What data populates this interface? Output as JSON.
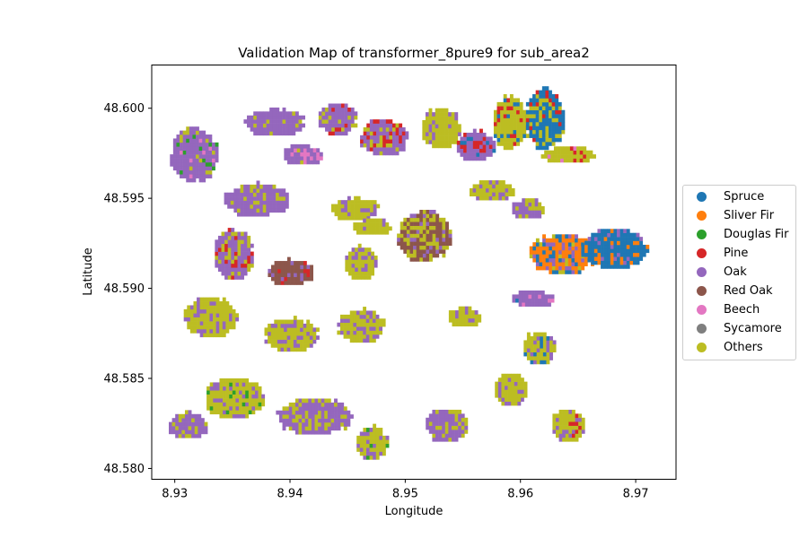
{
  "chart_data": {
    "type": "scatter",
    "title": "Validation Map of transformer_8pure9 for sub_area2",
    "xlabel": "Longitude",
    "ylabel": "Latitude",
    "xlim": [
      8.928,
      8.9735
    ],
    "ylim": [
      48.5794,
      48.6024
    ],
    "xticks": [
      "8.93",
      "8.94",
      "8.95",
      "8.96",
      "8.97"
    ],
    "xtick_values": [
      8.93,
      8.94,
      8.95,
      8.96,
      8.97
    ],
    "yticks": [
      "48.580",
      "48.585",
      "48.590",
      "48.595",
      "48.600"
    ],
    "ytick_values": [
      48.58,
      48.585,
      48.59,
      48.595,
      48.6
    ],
    "grid": false,
    "legend_position": "center-right-outside",
    "classes": [
      {
        "name": "Spruce",
        "color": "#1f77b4"
      },
      {
        "name": "Sliver Fir",
        "color": "#ff7f0e"
      },
      {
        "name": "Douglas Fir",
        "color": "#2ca02c"
      },
      {
        "name": "Pine",
        "color": "#d62728"
      },
      {
        "name": "Oak",
        "color": "#9467bd"
      },
      {
        "name": "Red Oak",
        "color": "#8c564b"
      },
      {
        "name": "Beech",
        "color": "#e377c2"
      },
      {
        "name": "Sycamore",
        "color": "#7f7f7f"
      },
      {
        "name": "Others",
        "color": "#bcbd22"
      }
    ],
    "patches": [
      {
        "lon": 8.9315,
        "lat": 48.5975,
        "rlon": 0.0022,
        "rlat": 0.0016,
        "main": "Oak",
        "mix": {
          "Douglas Fir": 0.08,
          "Others": 0.1,
          "Beech": 0.06
        }
      },
      {
        "lon": 8.9385,
        "lat": 48.5993,
        "rlon": 0.0028,
        "rlat": 0.0008,
        "main": "Oak",
        "mix": {
          "Others": 0.15
        }
      },
      {
        "lon": 8.941,
        "lat": 48.5975,
        "rlon": 0.0018,
        "rlat": 0.0006,
        "main": "Oak",
        "mix": {
          "Beech": 0.25,
          "Others": 0.15
        }
      },
      {
        "lon": 8.944,
        "lat": 48.5995,
        "rlon": 0.0018,
        "rlat": 0.001,
        "main": "Oak",
        "mix": {
          "Pine": 0.12,
          "Others": 0.12
        }
      },
      {
        "lon": 8.948,
        "lat": 48.5985,
        "rlon": 0.0022,
        "rlat": 0.0011,
        "main": "Oak",
        "mix": {
          "Pine": 0.15,
          "Others": 0.18
        }
      },
      {
        "lon": 8.953,
        "lat": 48.599,
        "rlon": 0.0018,
        "rlat": 0.0012,
        "main": "Others",
        "mix": {
          "Oak": 0.2
        }
      },
      {
        "lon": 8.956,
        "lat": 48.598,
        "rlon": 0.0018,
        "rlat": 0.0009,
        "main": "Oak",
        "mix": {
          "Pine": 0.2,
          "Spruce": 0.1
        }
      },
      {
        "lon": 8.959,
        "lat": 48.5993,
        "rlon": 0.0016,
        "rlat": 0.0016,
        "main": "Others",
        "mix": {
          "Pine": 0.15,
          "Spruce": 0.12
        }
      },
      {
        "lon": 8.962,
        "lat": 48.5995,
        "rlon": 0.0018,
        "rlat": 0.0018,
        "main": "Spruce",
        "mix": {
          "Others": 0.25,
          "Pine": 0.1
        }
      },
      {
        "lon": 8.964,
        "lat": 48.5975,
        "rlon": 0.0025,
        "rlat": 0.0005,
        "main": "Others",
        "mix": {
          "Pine": 0.15,
          "Beech": 0.1
        }
      },
      {
        "lon": 8.937,
        "lat": 48.595,
        "rlon": 0.003,
        "rlat": 0.001,
        "main": "Oak",
        "mix": {
          "Others": 0.25
        }
      },
      {
        "lon": 8.9455,
        "lat": 48.5945,
        "rlon": 0.0022,
        "rlat": 0.0007,
        "main": "Others",
        "mix": {
          "Oak": 0.25
        }
      },
      {
        "lon": 8.9515,
        "lat": 48.593,
        "rlon": 0.0025,
        "rlat": 0.0015,
        "main": "Red Oak",
        "mix": {
          "Others": 0.35,
          "Oak": 0.15
        }
      },
      {
        "lon": 8.9575,
        "lat": 48.5955,
        "rlon": 0.0022,
        "rlat": 0.0006,
        "main": "Others",
        "mix": {
          "Oak": 0.25
        }
      },
      {
        "lon": 8.9605,
        "lat": 48.5945,
        "rlon": 0.0015,
        "rlat": 0.0006,
        "main": "Oak",
        "mix": {
          "Others": 0.3
        }
      },
      {
        "lon": 8.935,
        "lat": 48.592,
        "rlon": 0.0018,
        "rlat": 0.0015,
        "main": "Oak",
        "mix": {
          "Pine": 0.12,
          "Others": 0.15
        }
      },
      {
        "lon": 8.94,
        "lat": 48.591,
        "rlon": 0.0022,
        "rlat": 0.0008,
        "main": "Red Oak",
        "mix": {
          "Pine": 0.1,
          "Oak": 0.1
        }
      },
      {
        "lon": 8.946,
        "lat": 48.5915,
        "rlon": 0.0015,
        "rlat": 0.001,
        "main": "Others",
        "mix": {
          "Oak": 0.25
        }
      },
      {
        "lon": 8.947,
        "lat": 48.5935,
        "rlon": 0.0018,
        "rlat": 0.0005,
        "main": "Others",
        "mix": {
          "Oak": 0.15
        }
      },
      {
        "lon": 8.9635,
        "lat": 48.592,
        "rlon": 0.003,
        "rlat": 0.0012,
        "main": "Sliver Fir",
        "mix": {
          "Spruce": 0.2,
          "Oak": 0.2,
          "Others": 0.1
        }
      },
      {
        "lon": 8.968,
        "lat": 48.5923,
        "rlon": 0.003,
        "rlat": 0.0012,
        "main": "Spruce",
        "mix": {
          "Sliver Fir": 0.12,
          "Oak": 0.1
        }
      },
      {
        "lon": 8.961,
        "lat": 48.5895,
        "rlon": 0.002,
        "rlat": 0.0005,
        "main": "Oak",
        "mix": {
          "Beech": 0.15,
          "Spruce": 0.1
        }
      },
      {
        "lon": 8.933,
        "lat": 48.5885,
        "rlon": 0.0025,
        "rlat": 0.0012,
        "main": "Others",
        "mix": {
          "Oak": 0.2
        }
      },
      {
        "lon": 8.94,
        "lat": 48.5875,
        "rlon": 0.0025,
        "rlat": 0.001,
        "main": "Others",
        "mix": {
          "Oak": 0.22
        }
      },
      {
        "lon": 8.946,
        "lat": 48.588,
        "rlon": 0.0022,
        "rlat": 0.001,
        "main": "Others",
        "mix": {
          "Oak": 0.3
        }
      },
      {
        "lon": 8.955,
        "lat": 48.5885,
        "rlon": 0.0015,
        "rlat": 0.0006,
        "main": "Others",
        "mix": {
          "Oak": 0.2
        }
      },
      {
        "lon": 8.9615,
        "lat": 48.5868,
        "rlon": 0.0015,
        "rlat": 0.001,
        "main": "Others",
        "mix": {
          "Spruce": 0.15,
          "Oak": 0.15
        }
      },
      {
        "lon": 8.935,
        "lat": 48.584,
        "rlon": 0.0028,
        "rlat": 0.0012,
        "main": "Others",
        "mix": {
          "Oak": 0.2,
          "Douglas Fir": 0.1
        }
      },
      {
        "lon": 8.942,
        "lat": 48.583,
        "rlon": 0.0035,
        "rlat": 0.0011,
        "main": "Oak",
        "mix": {
          "Others": 0.35
        }
      },
      {
        "lon": 8.947,
        "lat": 48.5815,
        "rlon": 0.0015,
        "rlat": 0.001,
        "main": "Others",
        "mix": {
          "Oak": 0.25,
          "Douglas Fir": 0.08
        }
      },
      {
        "lon": 8.9535,
        "lat": 48.5825,
        "rlon": 0.002,
        "rlat": 0.001,
        "main": "Oak",
        "mix": {
          "Others": 0.3
        }
      },
      {
        "lon": 8.959,
        "lat": 48.5845,
        "rlon": 0.0015,
        "rlat": 0.001,
        "main": "Others",
        "mix": {
          "Oak": 0.3
        }
      },
      {
        "lon": 8.964,
        "lat": 48.5825,
        "rlon": 0.0015,
        "rlat": 0.001,
        "main": "Others",
        "mix": {
          "Pine": 0.1,
          "Oak": 0.15
        }
      },
      {
        "lon": 8.931,
        "lat": 48.5825,
        "rlon": 0.0018,
        "rlat": 0.0008,
        "main": "Oak",
        "mix": {
          "Others": 0.25
        }
      }
    ]
  }
}
